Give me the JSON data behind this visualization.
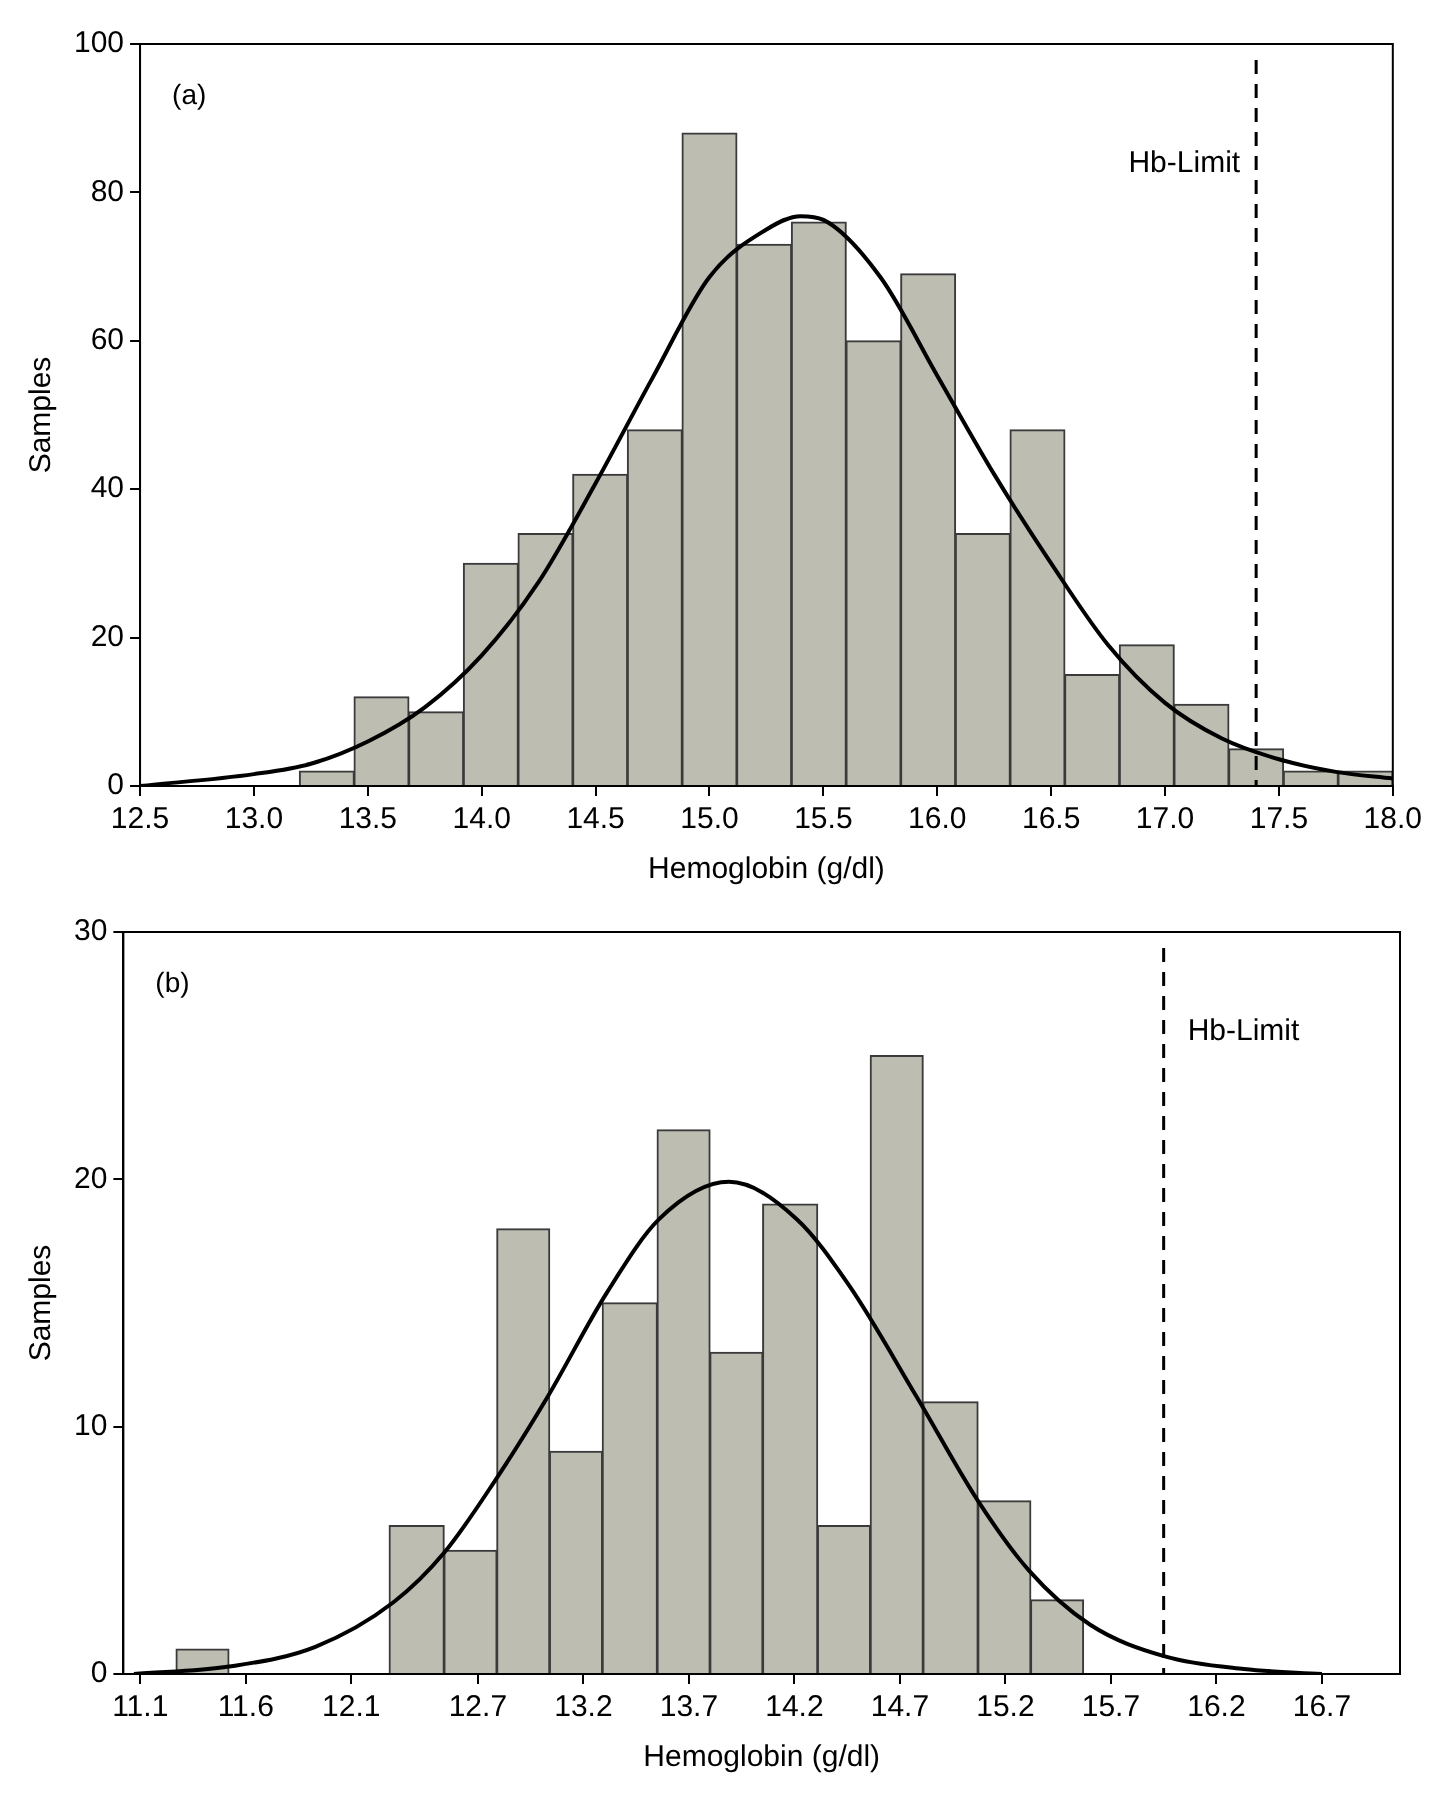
{
  "chart_data": [
    {
      "type": "histogram",
      "xlabel": "Hemoglobin (g/dl)",
      "ylabel": "Samples",
      "annotations": [
        "(a)"
      ],
      "xlim": [
        12.5,
        18.0
      ],
      "xticks": [
        12.5,
        {
          "value": 13,
          "label": "13.0"
        },
        13.5,
        {
          "value": 14,
          "label": "14.0"
        },
        14.5,
        {
          "value": 15,
          "label": "15.0"
        },
        15.5,
        {
          "value": 16,
          "label": "16.0"
        },
        16.5,
        {
          "value": 17,
          "label": "17.0"
        },
        17.5,
        {
          "value": 18,
          "label": "18.0"
        }
      ],
      "ylim": [
        0,
        100
      ],
      "yticks": [
        0,
        20,
        40,
        60,
        80,
        100
      ],
      "grid": false,
      "ref_lines": [
        {
          "axis": "x",
          "value": 17.4,
          "label": "Hb-Limit",
          "color": "#000000",
          "line_style": "dashed"
        }
      ],
      "series": [
        {
          "type": "histogram",
          "color": "#bdbdb2",
          "bins": [
            13.2,
            13.44,
            13.68,
            13.92,
            14.16,
            14.4,
            14.64,
            14.88,
            15.12,
            15.36,
            15.6,
            15.84,
            16.08,
            16.32,
            16.56,
            16.8,
            17.04,
            17.28,
            17.52,
            17.76,
            18.0
          ],
          "values": [
            2,
            12,
            10,
            30,
            34,
            42,
            48,
            88,
            73,
            76,
            60,
            69,
            34,
            48,
            15,
            19,
            11,
            5,
            2,
            2
          ]
        },
        {
          "type": "line",
          "color": "#000000",
          "x": [
            12.5,
            13.0,
            13.25,
            13.5,
            13.75,
            14.0,
            14.25,
            14.5,
            14.75,
            15.0,
            15.25,
            15.4,
            15.5,
            15.75,
            16.0,
            16.25,
            16.5,
            16.75,
            17.0,
            17.25,
            17.5,
            17.75,
            18.0
          ],
          "values": [
            0,
            1.6,
            3,
            6,
            10.6,
            17.6,
            27.5,
            40.8,
            55,
            68.6,
            75,
            76.8,
            76.3,
            68.6,
            55.3,
            42,
            30,
            19,
            11.2,
            6.4,
            3.6,
            1.9,
            1
          ]
        }
      ]
    },
    {
      "type": "histogram",
      "xlabel": "Hemoglobin (g/dl)",
      "ylabel": "Samples",
      "annotations": [
        "(b)"
      ],
      "xlim": [
        11.02,
        17.07
      ],
      "xticks": [
        11.1,
        11.6,
        12.1,
        12.7,
        13.2,
        13.7,
        14.2,
        14.7,
        15.2,
        15.7,
        16.2,
        16.7
      ],
      "ylim": [
        0,
        30
      ],
      "yticks": [
        0,
        10,
        20,
        30
      ],
      "grid": false,
      "ref_lines": [
        {
          "axis": "x",
          "value": 15.95,
          "label": "Hb-Limit",
          "color": "#000000",
          "line_style": "dashed"
        }
      ],
      "series": [
        {
          "type": "histogram",
          "color": "#bdbdb2",
          "bins": [
            11.27,
            11.52,
            11.78,
            12.03,
            12.28,
            12.54,
            12.79,
            13.04,
            13.29,
            13.55,
            13.8,
            14.05,
            14.31,
            14.56,
            14.81,
            15.07,
            15.32,
            15.57
          ],
          "values": [
            1,
            0,
            0,
            0,
            6,
            5,
            18,
            9,
            15,
            22,
            13,
            19,
            6,
            25,
            11,
            7,
            3
          ]
        },
        {
          "type": "line",
          "color": "#000000",
          "x": [
            11.07,
            11.52,
            11.93,
            12.3,
            12.54,
            12.78,
            13.03,
            13.31,
            13.56,
            13.89,
            14.21,
            14.46,
            14.78,
            15.07,
            15.31,
            15.6,
            15.96,
            16.33,
            16.7
          ],
          "values": [
            0,
            0.3,
            1.1,
            2.9,
            4.9,
            7.8,
            11.2,
            15.4,
            18.4,
            19.9,
            18.4,
            15.7,
            11.2,
            7,
            4.2,
            2,
            0.7,
            0.2,
            0
          ]
        }
      ]
    }
  ]
}
